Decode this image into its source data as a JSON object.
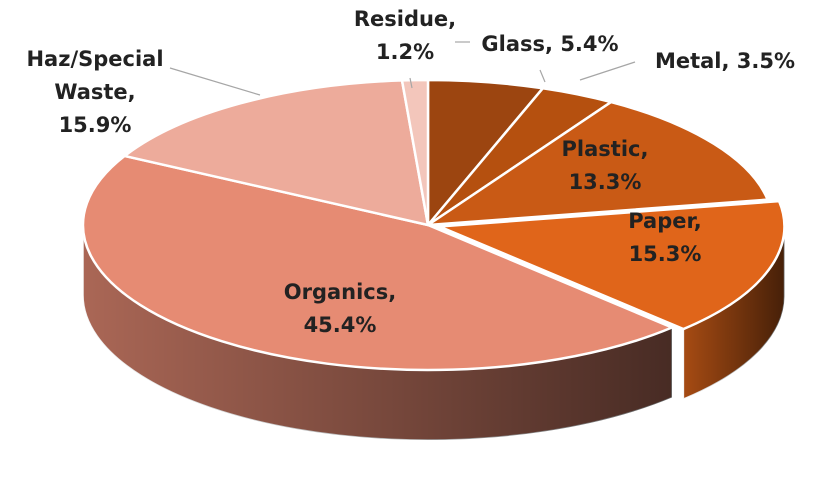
{
  "chart_data": {
    "type": "pie3d",
    "values": [
      5.4,
      3.5,
      13.3,
      15.3,
      45.4,
      15.9,
      1.2
    ],
    "value_labels": [
      "Glass, 5.4%",
      "Metal, 3.5%",
      "Plastic,\n13.3%",
      "Paper,\n15.3%",
      "Organics,\n45.4%",
      "Haz/Special\nWaste,\n15.9%",
      "Residue,\n1.2%"
    ],
    "colors": [
      "#9c4510",
      "#b5500f",
      "#c95a15",
      "#e0651a",
      "#e68b73",
      "#edab9b",
      "#f3c6bb"
    ]
  }
}
